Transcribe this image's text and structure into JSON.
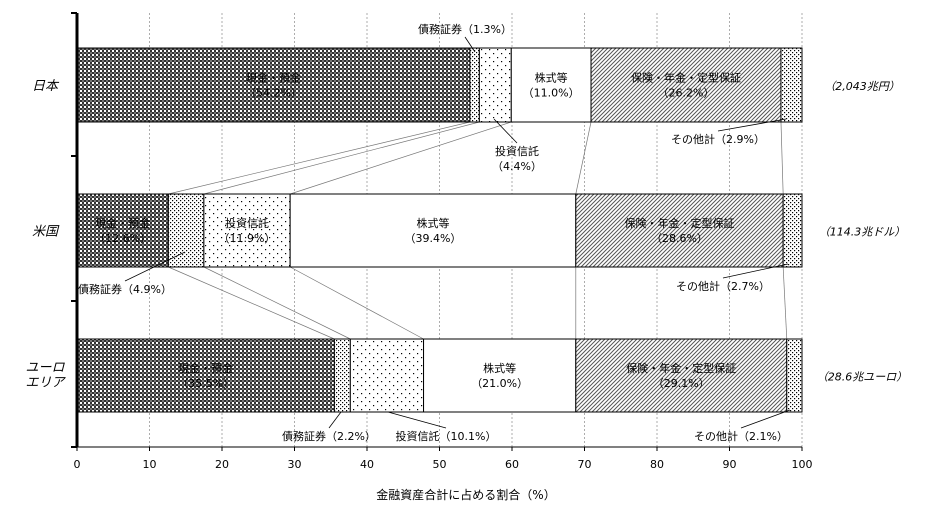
{
  "chart_data": {
    "type": "bar",
    "orientation": "horizontal",
    "stacked": true,
    "xlabel": "金融資産合計に占める割合（%）",
    "xlim": [
      0,
      100
    ],
    "xticks": [
      "0",
      "10",
      "20",
      "30",
      "40",
      "50",
      "60",
      "70",
      "80",
      "90",
      "100"
    ],
    "grid": "vertical dashed",
    "categories": [
      {
        "name": "日本",
        "total": "（2,043兆円）"
      },
      {
        "name": "米国",
        "total": "（114.3兆ドル）"
      },
      {
        "name": "ユーロエリア",
        "name_lines": [
          "ユーロ",
          "エリア"
        ],
        "total": "（28.6兆ユーロ）"
      }
    ],
    "series": [
      {
        "name": "現金・預金",
        "pattern": "dense-check",
        "values": [
          54.2,
          12.6,
          35.5
        ]
      },
      {
        "name": "債務証券",
        "pattern": "dots-dense",
        "values": [
          1.3,
          4.9,
          2.2
        ]
      },
      {
        "name": "投資信託",
        "pattern": "dots-sparse",
        "values": [
          4.4,
          11.9,
          10.1
        ]
      },
      {
        "name": "株式等",
        "pattern": "white",
        "values": [
          11.0,
          39.4,
          21.0
        ]
      },
      {
        "name": "保険・年金・定型保証",
        "pattern": "diagonal",
        "values": [
          26.2,
          28.6,
          29.1
        ]
      },
      {
        "name": "その他計",
        "pattern": "dots-dense",
        "values": [
          2.9,
          2.7,
          2.1
        ]
      }
    ],
    "labels": [
      [
        {
          "lines": [
            "現金・預金",
            "（54.2%）"
          ]
        },
        {
          "lines": [
            "債務証券（1.3%）"
          ]
        },
        {
          "lines": [
            "投資信託",
            "（4.4%）"
          ]
        },
        {
          "lines": [
            "株式等",
            "（11.0%）"
          ]
        },
        {
          "lines": [
            "保険・年金・定型保証",
            "（26.2%）"
          ]
        },
        {
          "lines": [
            "その他計（2.9%）"
          ]
        }
      ],
      [
        {
          "lines": [
            "現金・預金",
            "（12.6%）"
          ]
        },
        {
          "lines": [
            "債務証券（4.9%）"
          ]
        },
        {
          "lines": [
            "投資信託",
            "（11.9%）"
          ]
        },
        {
          "lines": [
            "株式等",
            "（39.4%）"
          ]
        },
        {
          "lines": [
            "保険・年金・定型保証",
            "（28.6%）"
          ]
        },
        {
          "lines": [
            "その他計（2.7%）"
          ]
        }
      ],
      [
        {
          "lines": [
            "現金・預金",
            "（35.5%）"
          ]
        },
        {
          "lines": [
            "債務証券（2.2%）"
          ]
        },
        {
          "lines": [
            "投資信託（10.1%）"
          ]
        },
        {
          "lines": [
            "株式等",
            "（21.0%）"
          ]
        },
        {
          "lines": [
            "保険・年金・定型保証",
            "（29.1%）"
          ]
        },
        {
          "lines": [
            "その他計（2.1%）"
          ]
        }
      ]
    ]
  }
}
